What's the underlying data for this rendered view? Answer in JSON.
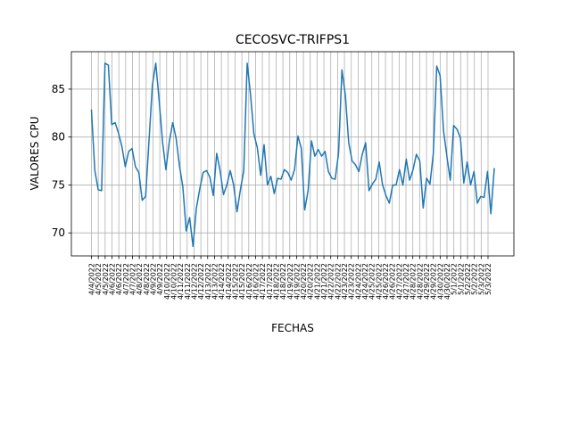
{
  "chart_data": {
    "type": "line",
    "title": "CECOSVC-TRIFPS1",
    "xlabel": "FECHAS",
    "ylabel": "VALORES CPU",
    "grid": true,
    "ylim": [
      67.6,
      88.9
    ],
    "yticks": [
      70,
      75,
      80,
      85
    ],
    "x_tick_labels": [
      "4/4/2022",
      "4/5/2022",
      "4/5/2022",
      "4/6/2022",
      "4/6/2022",
      "4/7/2022",
      "4/7/2022",
      "4/8/2022",
      "4/8/2022",
      "4/9/2022",
      "4/9/2022",
      "4/10/2022",
      "4/10/2022",
      "4/11/2022",
      "4/11/2022",
      "4/12/2022",
      "4/12/2022",
      "4/13/2022",
      "4/13/2022",
      "4/14/2022",
      "4/14/2022",
      "4/15/2022",
      "4/15/2022",
      "4/16/2022",
      "4/16/2022",
      "4/17/2022",
      "4/17/2022",
      "4/18/2022",
      "4/18/2022",
      "4/19/2022",
      "4/19/2022",
      "4/20/2022",
      "4/20/2022",
      "4/21/2022",
      "4/21/2022",
      "4/22/2022",
      "4/22/2022",
      "4/23/2022",
      "4/23/2022",
      "4/24/2022",
      "4/24/2022",
      "4/25/2022",
      "4/25/2022",
      "4/26/2022",
      "4/26/2022",
      "4/27/2022",
      "4/27/2022",
      "4/28/2022",
      "4/28/2022",
      "4/29/2022",
      "4/29/2022",
      "4/30/2022",
      "4/30/2022",
      "5/1/2022",
      "5/1/2022",
      "5/2/2022",
      "5/2/2022",
      "5/3/2022",
      "5/3/2022"
    ],
    "series": [
      {
        "color": "#1f77b4",
        "values": [
          82.8,
          76.5,
          74.5,
          74.4,
          87.7,
          87.5,
          81.3,
          81.5,
          80.4,
          79.0,
          76.9,
          78.5,
          78.8,
          76.9,
          76.3,
          73.4,
          73.8,
          79.6,
          85.4,
          87.7,
          83.8,
          79.5,
          76.6,
          79.5,
          81.5,
          79.9,
          77.0,
          74.8,
          70.2,
          71.6,
          68.6,
          72.6,
          74.6,
          76.3,
          76.5,
          75.8,
          73.9,
          78.3,
          76.5,
          74.0,
          75.0,
          76.5,
          75.0,
          72.2,
          74.5,
          76.5,
          87.7,
          84.4,
          80.3,
          78.9,
          76.0,
          79.2,
          75.0,
          75.9,
          74.1,
          75.7,
          75.6,
          76.6,
          76.3,
          75.5,
          76.6,
          80.1,
          78.8,
          72.4,
          74.4,
          79.6,
          78.0,
          78.7,
          78.0,
          78.5,
          76.4,
          75.7,
          75.6,
          78.3,
          87.0,
          84.4,
          79.4,
          77.5,
          77.1,
          76.4,
          78.2,
          79.4,
          74.4,
          75.1,
          75.6,
          77.4,
          75.0,
          73.9,
          73.1,
          75.0,
          75.0,
          76.6,
          75.0,
          77.7,
          75.5,
          76.6,
          78.2,
          77.5,
          72.6,
          75.7,
          75.1,
          78.3,
          87.4,
          86.4,
          80.7,
          78.0,
          75.5,
          81.2,
          80.8,
          79.9,
          75.2,
          77.4,
          75.0,
          76.4,
          73.1,
          73.8,
          73.7,
          76.4,
          72.0,
          76.7
        ]
      }
    ]
  }
}
